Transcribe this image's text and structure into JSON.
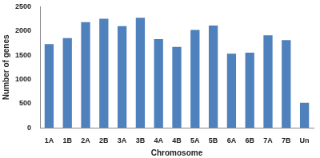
{
  "chart_data": {
    "type": "bar",
    "x_label": "Chromosome",
    "y_label": "Number of genes",
    "categories": [
      "1A",
      "1B",
      "2A",
      "2B",
      "3A",
      "3B",
      "4A",
      "4B",
      "5A",
      "5B",
      "6A",
      "6B",
      "7A",
      "7B",
      "Un"
    ],
    "values": [
      1730,
      1850,
      2180,
      2250,
      2100,
      2270,
      1830,
      1670,
      2020,
      2110,
      1530,
      1550,
      1910,
      1810,
      520
    ],
    "color": "#4f81bd",
    "ylim": [
      0,
      2500
    ],
    "yticks": [
      0,
      500,
      1000,
      1500,
      2000,
      2500
    ],
    "grid": false
  }
}
